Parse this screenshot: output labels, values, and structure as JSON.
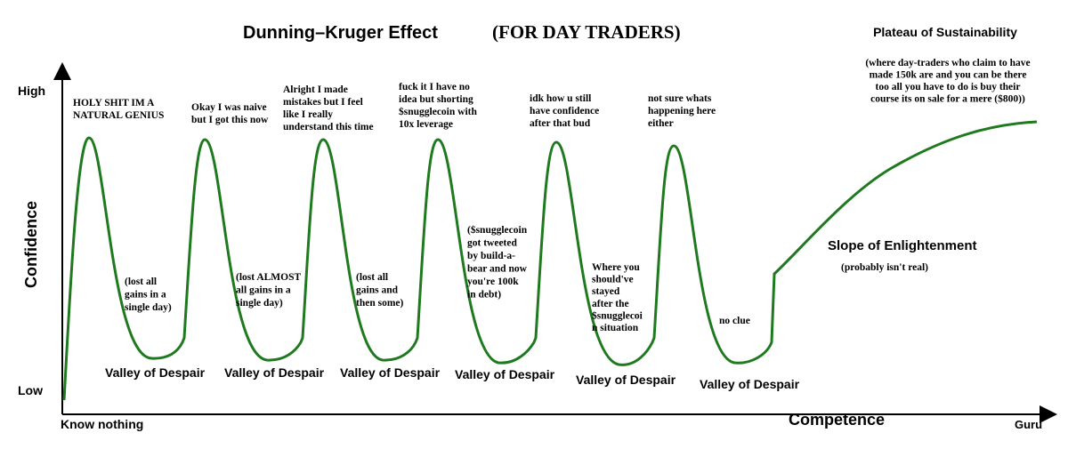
{
  "header": {
    "title": "Dunning–Kruger Effect",
    "subtitle": "(FOR DAY TRADERS)"
  },
  "axes": {
    "y_label": "Confidence",
    "y_high": "High",
    "y_low": "Low",
    "x_label": "Competence",
    "x_start": "Know nothing",
    "x_end": "Guru"
  },
  "peaks": [
    {
      "lines": [
        "HOLY SHIT IM A",
        "NATURAL GENIUS"
      ]
    },
    {
      "lines": [
        "Okay I was naive",
        "but I got this now"
      ]
    },
    {
      "lines": [
        "Alright I made",
        "mistakes but I feel",
        "like I really",
        "understand this time"
      ]
    },
    {
      "lines": [
        "fuck it I have no",
        "idea but shorting",
        "$snugglecoin with",
        "10x leverage"
      ]
    },
    {
      "lines": [
        "idk how u still",
        "have confidence",
        "after that bud"
      ]
    },
    {
      "lines": [
        "not sure whats",
        "happening here",
        "either"
      ]
    }
  ],
  "dips": [
    {
      "lines": [
        "(lost all",
        "gains in a",
        "single day)"
      ]
    },
    {
      "lines": [
        "(lost ALMOST",
        "all gains in a",
        "single day)"
      ]
    },
    {
      "lines": [
        "(lost all",
        "gains and",
        "then some)"
      ]
    },
    {
      "lines": [
        "($snugglecoin",
        "got tweeted",
        "by build-a-",
        "bear and now",
        "you're 100k",
        "in debt)"
      ]
    },
    {
      "lines": [
        "Where you",
        "should've",
        "stayed",
        "after the",
        "$snugglecoi",
        "n situation"
      ]
    },
    {
      "lines": [
        "no clue"
      ]
    }
  ],
  "valleys": [
    "Valley of Despair",
    "Valley of Despair",
    "Valley of Despair",
    "Valley of Despair",
    "Valley of Despair",
    "Valley of Despair"
  ],
  "slope": {
    "title": "Slope of Enlightenment",
    "note": "(probably isn't real)"
  },
  "plateau": {
    "title": "Plateau of Sustainability",
    "lines": [
      "(where day-traders who claim to have",
      "made 150k are and you can be there",
      "too all you have to do is buy their",
      "course its on sale for a mere ($800))"
    ]
  }
}
